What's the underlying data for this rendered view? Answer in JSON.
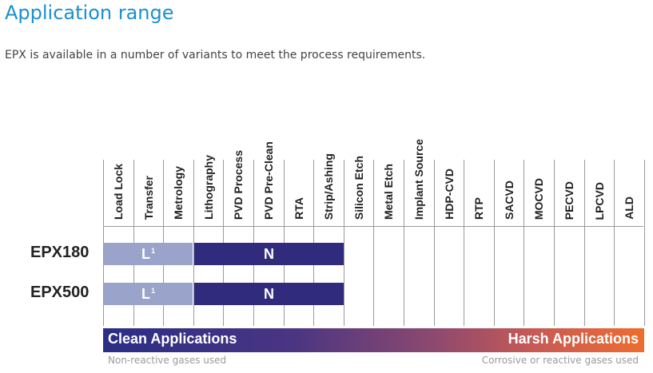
{
  "header": {
    "title": "Application range",
    "subtitle": "EPX is available in a number of variants to meet the process requirements."
  },
  "table": {
    "columns": [
      "Load Lock",
      "Transfer",
      "Metrology",
      "Lithography",
      "PVD Process",
      "PVD Pre-Clean",
      "RTA",
      "Strip/Ashing",
      "Silicon Etch",
      "Metal Etch",
      "Implant Source",
      "HDP-CVD",
      "RTP",
      "SACVD",
      "MOCVD",
      "PECVD",
      "LPCVD",
      "ALD"
    ],
    "rows": [
      {
        "name": "EPX180",
        "segments": [
          {
            "label": "L",
            "sup": "1",
            "color": "#9aa3c9"
          },
          {
            "label": "N",
            "color": "#312b7e"
          }
        ]
      },
      {
        "name": "EPX500",
        "segments": [
          {
            "label": "L",
            "sup": "1",
            "color": "#9aa3c9"
          },
          {
            "label": "N",
            "color": "#312b7e"
          }
        ]
      }
    ]
  },
  "scale": {
    "left_label": "Clean Applications",
    "right_label": "Harsh Applications",
    "left_note": "Non-reactive gases used",
    "right_note": "Corrosive or reactive gases used",
    "colors": {
      "start": "#2b2e86",
      "end": "#ee6d2e"
    }
  }
}
